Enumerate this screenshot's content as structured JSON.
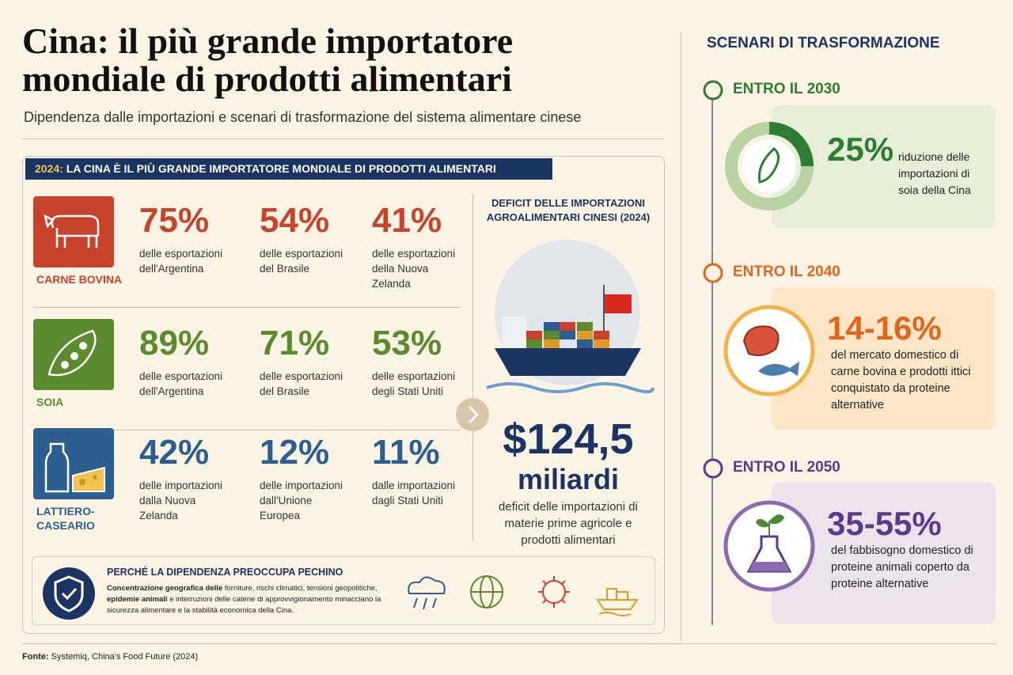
{
  "header": {
    "title": "Cina: il più grande importatore mondiale di prodotti alimentari",
    "subtitle": "Dipendenza dalle importazioni e scenari di trasformazione del sistema alimentare cinese"
  },
  "panel": {
    "year": "2024:",
    "label": "LA CINA È IL PIÙ GRANDE IMPORTATORE MONDIALE DI PRODOTTI ALIMENTARI",
    "rows": [
      {
        "name": "CARNE BOVINA",
        "color": "#c8432b",
        "stats": [
          {
            "value": "75%",
            "text": "delle esportazioni dell'Argentina"
          },
          {
            "value": "54%",
            "text": "delle esportazioni del Brasile"
          },
          {
            "value": "41%",
            "text": "delle esportazioni della Nuova Zelanda"
          }
        ]
      },
      {
        "name": "SOIA",
        "color": "#5b8a2f",
        "stats": [
          {
            "value": "89%",
            "text": "delle esportazioni dell'Argentina"
          },
          {
            "value": "71%",
            "text": "delle esportazioni del Brasile"
          },
          {
            "value": "53%",
            "text": "delle esportazioni degli Stati Uniti"
          }
        ]
      },
      {
        "name": "LATTIERO-CASEARIO",
        "color": "#2c5f8f",
        "stats": [
          {
            "value": "42%",
            "text": "delle importazioni dalla Nuova Zelanda"
          },
          {
            "value": "12%",
            "text": "delle importazioni dall'Unione Europea"
          },
          {
            "value": "11%",
            "text": "dalle importazioni dagli Stati Uniti"
          }
        ]
      }
    ]
  },
  "deficit": {
    "title": "DEFICIT DELLE IMPORTAZIONI AGROALIMENTARI CINESI (2024)",
    "amount": "$124,5",
    "unit": "miliardi",
    "text": "deficit delle importazioni di materie prime agricole e prodotti alimentari"
  },
  "why": {
    "title": "PERCHÉ LA DIPENDENZA PREOCCUPA PECHINO",
    "parts": [
      {
        "text": "Concentrazione geografica delle",
        "bold": true
      },
      {
        "text": " forniture, rischi climatici, tensioni geopolitiche, ",
        "bold": false
      },
      {
        "text": "epidemie animali",
        "bold": true
      },
      {
        "text": " e interruzioni delle catene di approvvigionamento minacciano la sicurezza alimentare e la stabilità economica della Cina.",
        "bold": false
      }
    ]
  },
  "scenarios": {
    "title": "SCENARI DI TRASFORMAZIONE",
    "items": [
      {
        "label": "ENTRO IL 2030",
        "value": 25,
        "value_label": "25%",
        "text": "riduzione delle importazioni di soia della Cina",
        "color": "#2e7d32",
        "bg": "#e8efd9"
      },
      {
        "label": "ENTRO IL 2040",
        "value_label": "14-16%",
        "text": "del mercato domestico di carne bovina e prodotti ittici conquistato da proteine alternative",
        "color": "#e0661f",
        "bg": "#fde6c6"
      },
      {
        "label": "ENTRO IL 2050",
        "value_label": "35-55%",
        "text": "del fabbisogno domestico di proteine animali coperto da proteine alternative",
        "color": "#5b3a8a",
        "bg": "#ede3ec"
      }
    ]
  },
  "footer": {
    "source_label": "Fonte:",
    "source": "Systemiq, China's Food Future (2024)"
  }
}
